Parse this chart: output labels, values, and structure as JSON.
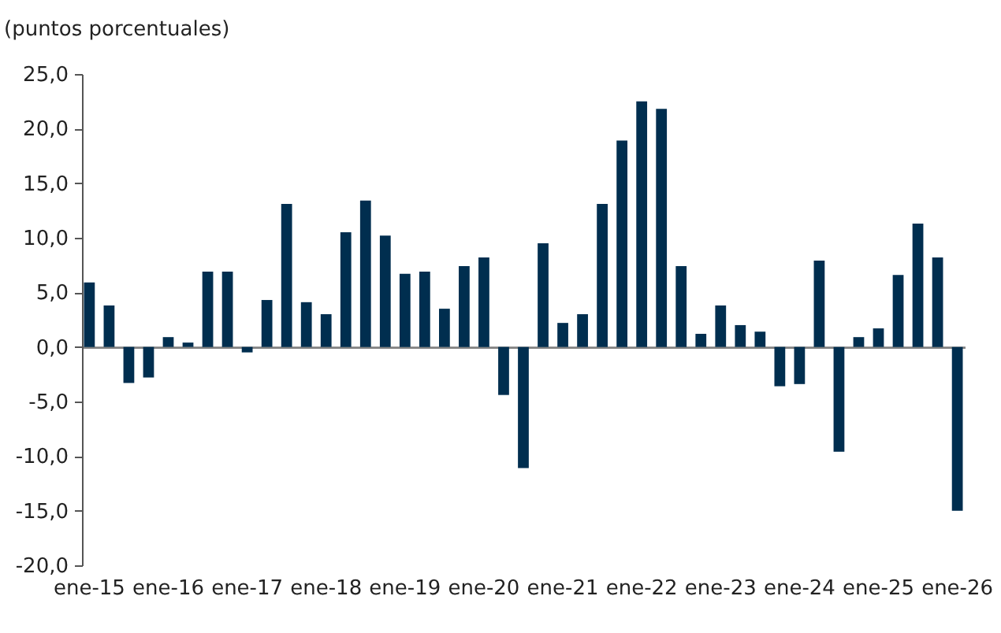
{
  "chart_data": {
    "type": "bar",
    "ylabel": "(puntos porcentuales)",
    "categories": [
      "ene-15",
      null,
      null,
      null,
      "ene-16",
      null,
      null,
      null,
      "ene-17",
      null,
      null,
      null,
      "ene-18",
      null,
      null,
      null,
      "ene-19",
      null,
      null,
      null,
      "ene-20",
      null,
      null,
      null,
      "ene-21",
      null,
      null,
      null,
      "ene-22",
      null,
      null,
      null,
      "ene-23",
      null,
      null,
      null,
      "ene-24",
      null,
      null,
      null,
      "ene-25",
      null,
      null,
      null,
      "ene-26"
    ],
    "values": [
      5.9,
      3.8,
      -3.3,
      -2.8,
      0.9,
      0.4,
      6.9,
      6.9,
      -0.5,
      4.3,
      13.1,
      4.1,
      3.0,
      10.5,
      13.4,
      10.2,
      6.7,
      6.9,
      3.5,
      7.4,
      8.2,
      -4.4,
      -11.1,
      9.5,
      2.2,
      3.0,
      13.1,
      18.9,
      22.5,
      21.8,
      7.4,
      1.2,
      3.8,
      2.0,
      1.4,
      -3.6,
      -3.4,
      7.9,
      -9.6,
      0.9,
      1.7,
      6.6,
      11.3,
      8.2,
      -15.0
    ],
    "color": "#002e4f",
    "ylim": [
      -20,
      25
    ],
    "yticks": [
      {
        "value": -20,
        "label": "-20,0"
      },
      {
        "value": -15,
        "label": "-15,0"
      },
      {
        "value": -10,
        "label": "-10,0"
      },
      {
        "value": -5,
        "label": "-5,0"
      },
      {
        "value": 0,
        "label": "0,0"
      },
      {
        "value": 5,
        "label": "5,0"
      },
      {
        "value": 10,
        "label": "10,0"
      },
      {
        "value": 15,
        "label": "15,0"
      },
      {
        "value": 20,
        "label": "20,0"
      },
      {
        "value": 25,
        "label": "25,0"
      }
    ],
    "data_labels": false
  }
}
